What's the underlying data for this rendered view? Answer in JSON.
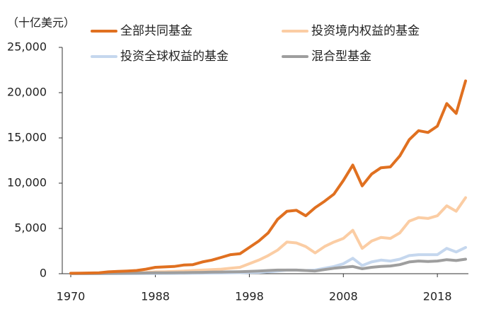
{
  "chart_data": {
    "type": "line",
    "y_axis_label": "（十亿美元）",
    "categories": [
      "1970",
      null,
      null,
      null,
      null,
      null,
      null,
      null,
      null,
      "1988",
      null,
      null,
      null,
      null,
      null,
      null,
      null,
      null,
      null,
      "1998",
      null,
      null,
      null,
      null,
      null,
      null,
      null,
      null,
      null,
      "2008",
      null,
      null,
      null,
      null,
      null,
      null,
      null,
      null,
      null,
      "2018",
      null,
      null,
      null
    ],
    "series": [
      {
        "name": "全部共同基金",
        "color": "#e07020",
        "values": [
          50,
          60,
          80,
          100,
          200,
          250,
          300,
          350,
          500,
          700,
          750,
          800,
          950,
          1000,
          1300,
          1500,
          1800,
          2100,
          2200,
          2900,
          3600,
          4500,
          6000,
          6900,
          7000,
          6400,
          7300,
          8000,
          8800,
          10300,
          12000,
          9700,
          11000,
          11700,
          11800,
          13000,
          14800,
          15800,
          15600,
          16300,
          18800,
          17700,
          21300
        ]
      },
      {
        "name": "投资境内权益的基金",
        "color": "#fbcda4",
        "values": [
          20,
          25,
          30,
          40,
          60,
          80,
          100,
          120,
          150,
          200,
          220,
          250,
          300,
          350,
          400,
          450,
          500,
          600,
          700,
          1100,
          1500,
          2000,
          2600,
          3500,
          3400,
          3000,
          2300,
          3000,
          3500,
          3900,
          4800,
          2800,
          3600,
          4000,
          3900,
          4500,
          5800,
          6200,
          6100,
          6400,
          7500,
          6900,
          8400
        ]
      },
      {
        "name": "投资全球权益的基金",
        "color": "#c5d7ee",
        "values": [
          0,
          0,
          0,
          0,
          10,
          10,
          10,
          10,
          20,
          20,
          30,
          30,
          40,
          50,
          60,
          70,
          80,
          100,
          120,
          140,
          150,
          200,
          300,
          400,
          400,
          350,
          400,
          600,
          800,
          1100,
          1700,
          900,
          1300,
          1500,
          1400,
          1600,
          2000,
          2100,
          2100,
          2100,
          2800,
          2400,
          2900
        ]
      },
      {
        "name": "混合型基金",
        "color": "#9e9e9e",
        "values": [
          20,
          20,
          25,
          30,
          40,
          50,
          60,
          70,
          80,
          90,
          100,
          110,
          120,
          130,
          150,
          170,
          190,
          200,
          220,
          250,
          300,
          350,
          400,
          400,
          400,
          350,
          300,
          450,
          600,
          700,
          800,
          550,
          700,
          800,
          850,
          1000,
          1300,
          1400,
          1350,
          1400,
          1550,
          1450,
          1600
        ]
      }
    ],
    "ylim": [
      0,
      25000
    ],
    "yticks": [
      0,
      {
        "value": 5000,
        "label": "5,000"
      },
      {
        "value": 10000,
        "label": "10,000"
      },
      {
        "value": 15000,
        "label": "15,000"
      },
      {
        "value": 20000,
        "label": "20,000"
      },
      {
        "value": 25000,
        "label": "25,000"
      }
    ]
  }
}
